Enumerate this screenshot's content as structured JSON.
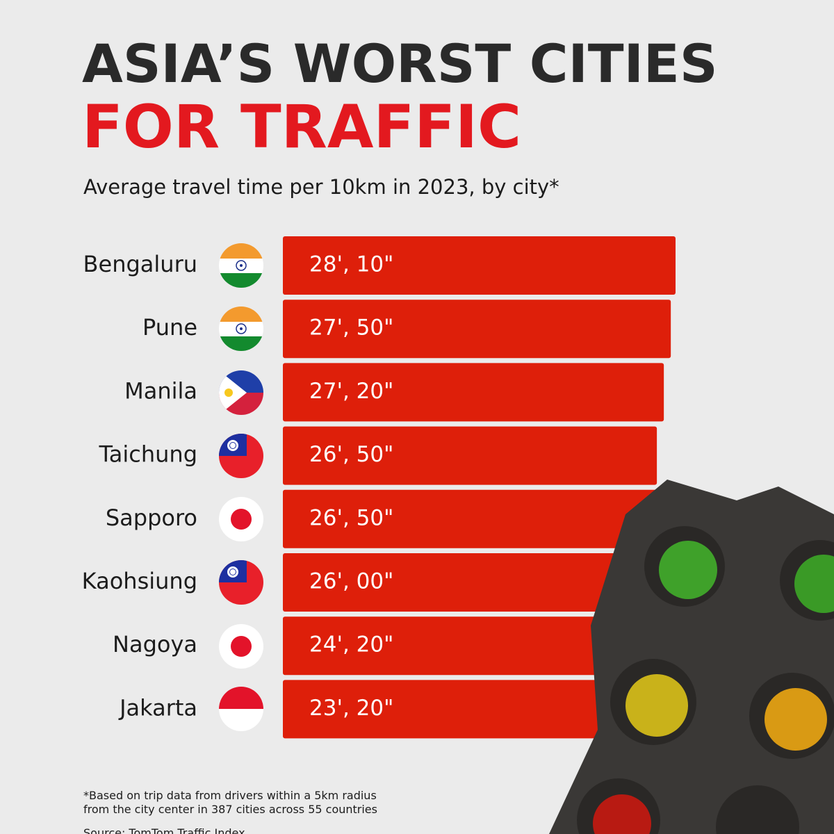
{
  "chart_data": {
    "type": "bar",
    "orientation": "horizontal",
    "title": "ASIA’S WORST CITIES",
    "title_highlight": "FOR TRAFFIC",
    "subtitle": "Average travel time per 10km in 2023, by city*",
    "categories": [
      "Bengaluru",
      "Pune",
      "Manila",
      "Taichung",
      "Sapporo",
      "Kaohsiung",
      "Nagoya",
      "Jakarta"
    ],
    "values": [
      28.17,
      27.83,
      27.33,
      26.83,
      26.83,
      26,
      24.33,
      23.33
    ],
    "value_labels": [
      "28', 10\"",
      "27', 50\"",
      "27', 20\"",
      "26', 50\"",
      "26', 50\"",
      "26', 00\"",
      "24', 20\"",
      "23', 20\""
    ],
    "color": "#de1f0a",
    "footnote": [
      "*Based on trip data from drivers within a 5km radius",
      "from the city center in 387 cities across 55 countries"
    ],
    "source": "Source: TomTom Traffic Index"
  }
}
